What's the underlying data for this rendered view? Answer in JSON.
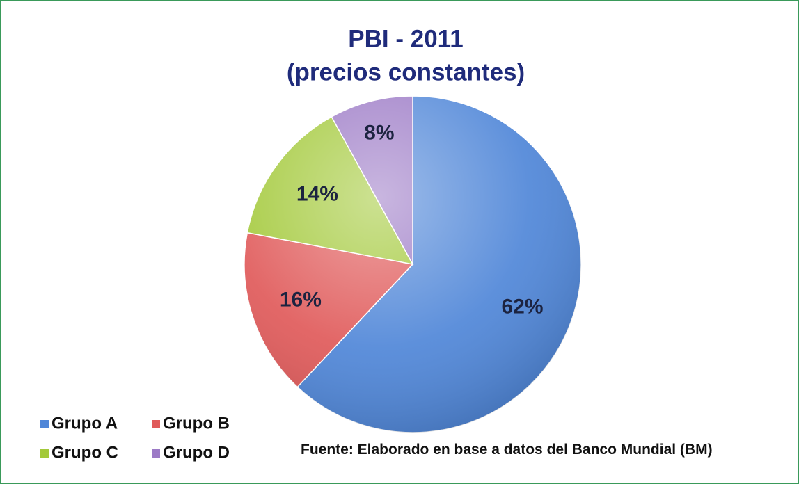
{
  "chart_data": {
    "type": "pie",
    "title": "PBI - 2011",
    "subtitle": "(precios constantes)",
    "categories": [
      "Grupo A",
      "Grupo B",
      "Grupo C",
      "Grupo D"
    ],
    "values": [
      62,
      16,
      14,
      8
    ],
    "value_labels": [
      "62%",
      "16%",
      "14%",
      "8%"
    ],
    "colors": [
      "#4f86d8",
      "#e05a5a",
      "#a3c93a",
      "#9c7ac6"
    ],
    "legend": "bottom-left",
    "source": "Fuente: Elaborado en base a datos del Banco Mundial (BM)"
  }
}
